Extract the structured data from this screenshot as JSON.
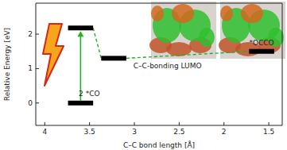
{
  "chart_data": {
    "type": "levels",
    "x_label": "C–C bond length [Å]",
    "y_label": "Relative Energy [eV]",
    "categories": [
      "2 *CO",
      null,
      "C–C-bonding LUMO",
      "*OCCO"
    ],
    "x": [
      3.6,
      3.6,
      3.23,
      1.58
    ],
    "values": [
      0,
      2.18,
      1.3,
      1.5
    ],
    "color": "#000000",
    "xlim": [
      4.1,
      1.35
    ],
    "xticks": [
      4,
      3.5,
      3,
      2.5,
      2,
      1.5
    ],
    "ylim": [
      -0.65,
      2.9
    ],
    "yticks": [
      0,
      1,
      2
    ],
    "grid": false
  }
}
